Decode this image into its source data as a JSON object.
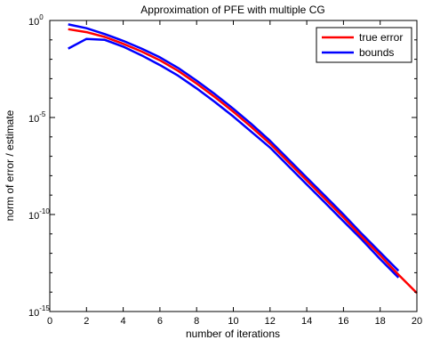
{
  "chart_data": {
    "type": "line",
    "title": "Approximation of PFE with multiple CG",
    "xlabel": "number of iterations",
    "ylabel": "norm of error / estimate",
    "xlim": [
      0,
      20
    ],
    "ylim_log10": [
      -15,
      0
    ],
    "y_scale": "log",
    "grid": false,
    "legend_position": "top-right",
    "x_ticks": [
      "0",
      "2",
      "4",
      "6",
      "8",
      "10",
      "12",
      "14",
      "16",
      "18",
      "20"
    ],
    "y_ticks": [
      {
        "base": "10",
        "exp": "0"
      },
      {
        "base": "10",
        "exp": "-5"
      },
      {
        "base": "10",
        "exp": "-10"
      },
      {
        "base": "10",
        "exp": "-15"
      }
    ],
    "series": [
      {
        "name": "true error",
        "color": "#ff0000",
        "x": [
          1,
          2,
          3,
          4,
          5,
          6,
          7,
          8,
          9,
          10,
          11,
          12,
          13,
          14,
          15,
          16,
          17,
          18,
          19,
          20
        ],
        "log10_y": [
          -0.45,
          -0.6,
          -0.85,
          -1.2,
          -1.6,
          -2.05,
          -2.6,
          -3.25,
          -3.95,
          -4.7,
          -5.5,
          -6.35,
          -7.3,
          -8.25,
          -9.2,
          -10.15,
          -11.15,
          -12.1,
          -13.1,
          -14.05
        ]
      },
      {
        "name": "bounds",
        "color": "#0000ff",
        "x": [
          1,
          2,
          3,
          4,
          5,
          6,
          7,
          8,
          9,
          10,
          11,
          12,
          13,
          14,
          15,
          16,
          17,
          18,
          19
        ],
        "upper_log10_y": [
          -0.2,
          -0.4,
          -0.7,
          -1.05,
          -1.45,
          -1.9,
          -2.45,
          -3.1,
          -3.8,
          -4.55,
          -5.35,
          -6.2,
          -7.15,
          -8.1,
          -9.05,
          -10.0,
          -11.0,
          -11.95,
          -12.9
        ],
        "lower_log10_y": [
          -1.45,
          -0.95,
          -1.0,
          -1.35,
          -1.8,
          -2.3,
          -2.85,
          -3.5,
          -4.2,
          -4.95,
          -5.75,
          -6.55,
          -7.5,
          -8.45,
          -9.4,
          -10.35,
          -11.3,
          -12.3,
          -13.25
        ]
      }
    ]
  }
}
